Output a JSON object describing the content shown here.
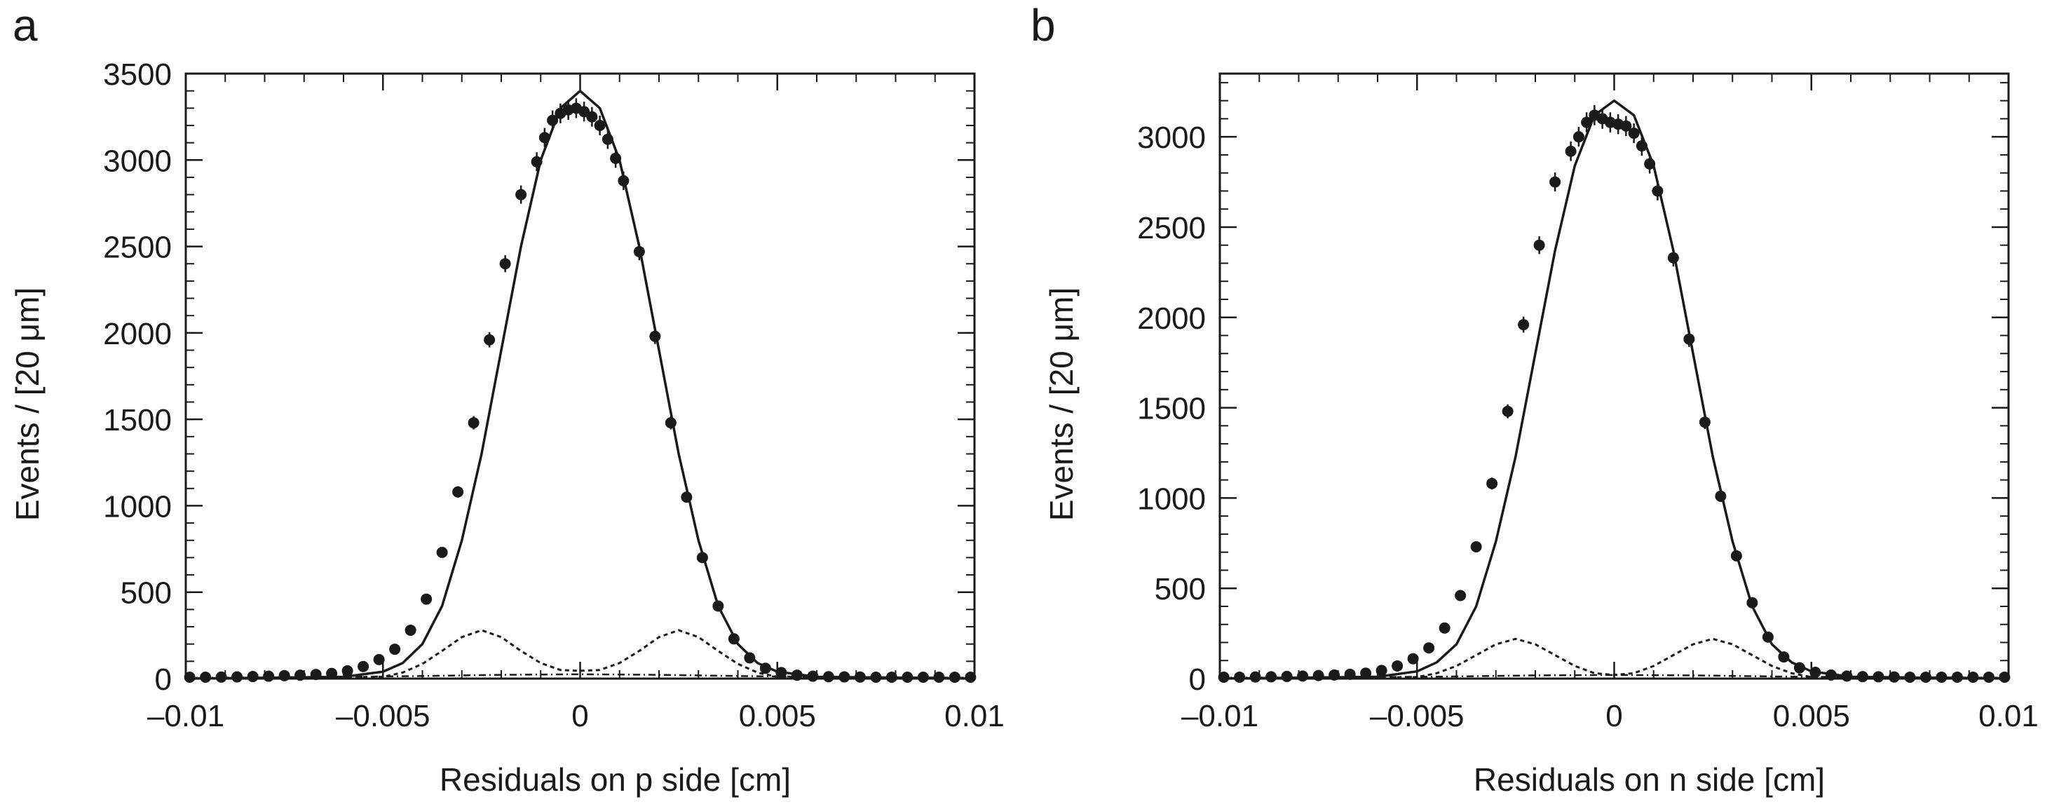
{
  "chart_data": [
    {
      "type": "scatter",
      "panel_label": "a",
      "xlabel": "Residuals on p side [cm]",
      "ylabel": "Events / [20 μm]",
      "xlim": [
        -0.01,
        0.01
      ],
      "ylim": [
        0,
        3500
      ],
      "x_ticks": [
        -0.01,
        -0.005,
        0,
        0.005,
        0.01
      ],
      "x_tick_labels": [
        "–0.01",
        "–0.005",
        "0",
        "0.005",
        "0.01"
      ],
      "y_ticks": [
        0,
        500,
        1000,
        1500,
        2000,
        2500,
        3000,
        3500
      ],
      "y_tick_labels": [
        "0",
        "500",
        "1000",
        "1500",
        "2000",
        "2500",
        "3000",
        "3500"
      ],
      "grid": false,
      "legend": "none",
      "series": [
        {
          "style": "points-with-error-bars",
          "x": [
            -0.0099,
            -0.0095,
            -0.0091,
            -0.0087,
            -0.0083,
            -0.0079,
            -0.0075,
            -0.0071,
            -0.0067,
            -0.0063,
            -0.0059,
            -0.0055,
            -0.0051,
            -0.0047,
            -0.0043,
            -0.0039,
            -0.0035,
            -0.0031,
            -0.0027,
            -0.0023,
            -0.0019,
            -0.0015,
            -0.0011,
            -0.0009,
            -0.0007,
            -0.0005,
            -0.0003,
            -0.0001,
            0.0001,
            0.0003,
            0.0005,
            0.0007,
            0.0009,
            0.0011,
            0.0015,
            0.0019,
            0.0023,
            0.0027,
            0.0031,
            0.0035,
            0.0039,
            0.0043,
            0.0047,
            0.0051,
            0.0055,
            0.0059,
            0.0063,
            0.0067,
            0.0071,
            0.0075,
            0.0079,
            0.0083,
            0.0087,
            0.0091,
            0.0095,
            0.0099
          ],
          "y": [
            8,
            8,
            9,
            10,
            12,
            14,
            17,
            20,
            24,
            30,
            45,
            70,
            110,
            170,
            280,
            460,
            730,
            1080,
            1480,
            1960,
            2400,
            2800,
            2990,
            3130,
            3230,
            3270,
            3290,
            3300,
            3280,
            3250,
            3200,
            3120,
            3010,
            2880,
            2470,
            1980,
            1480,
            1050,
            700,
            420,
            230,
            120,
            60,
            35,
            20,
            14,
            11,
            10,
            9,
            8,
            8,
            8,
            8,
            8,
            8,
            8
          ]
        },
        {
          "style": "solid-line",
          "x": [
            -0.01,
            -0.006,
            -0.005,
            -0.0045,
            -0.004,
            -0.0035,
            -0.003,
            -0.0025,
            -0.002,
            -0.0015,
            -0.001,
            -0.0005,
            0,
            0.0005,
            0.001,
            0.0015,
            0.002,
            0.0025,
            0.003,
            0.0035,
            0.004,
            0.0045,
            0.005,
            0.006,
            0.01
          ],
          "y": [
            0,
            10,
            40,
            90,
            200,
            420,
            800,
            1300,
            1900,
            2500,
            3000,
            3300,
            3400,
            3300,
            3000,
            2500,
            1900,
            1300,
            800,
            420,
            200,
            90,
            40,
            10,
            0
          ]
        },
        {
          "style": "dashed-line",
          "x": [
            -0.01,
            -0.005,
            -0.0045,
            -0.004,
            -0.0035,
            -0.003,
            -0.0025,
            -0.002,
            -0.0015,
            -0.001,
            -0.0005,
            0,
            0.0005,
            0.001,
            0.0015,
            0.002,
            0.0025,
            0.003,
            0.0035,
            0.004,
            0.0045,
            0.005,
            0.01
          ],
          "y": [
            0,
            10,
            35,
            85,
            160,
            240,
            280,
            240,
            160,
            90,
            50,
            45,
            50,
            90,
            160,
            240,
            280,
            240,
            160,
            85,
            35,
            10,
            0
          ]
        },
        {
          "style": "dash-dot-line",
          "x": [
            -0.01,
            -0.006,
            -0.004,
            -0.002,
            0,
            0.002,
            0.004,
            0.006,
            0.01
          ],
          "y": [
            5,
            10,
            15,
            22,
            25,
            22,
            15,
            10,
            5
          ]
        }
      ]
    },
    {
      "type": "scatter",
      "panel_label": "b",
      "xlabel": "Residuals on n side [cm]",
      "ylabel": "Events / [20 μm]",
      "xlim": [
        -0.01,
        0.01
      ],
      "ylim": [
        0,
        3350
      ],
      "x_ticks": [
        -0.01,
        -0.005,
        0,
        0.005,
        0.01
      ],
      "x_tick_labels": [
        "–0.01",
        "–0.005",
        "0",
        "0.005",
        "0.01"
      ],
      "y_ticks": [
        0,
        500,
        1000,
        1500,
        2000,
        2500,
        3000
      ],
      "y_tick_labels": [
        "0",
        "500",
        "1000",
        "1500",
        "2000",
        "2500",
        "3000"
      ],
      "grid": false,
      "legend": "none",
      "series": [
        {
          "style": "points-with-error-bars",
          "x": [
            -0.0099,
            -0.0095,
            -0.0091,
            -0.0087,
            -0.0083,
            -0.0079,
            -0.0075,
            -0.0071,
            -0.0067,
            -0.0063,
            -0.0059,
            -0.0055,
            -0.0051,
            -0.0047,
            -0.0043,
            -0.0039,
            -0.0035,
            -0.0031,
            -0.0027,
            -0.0023,
            -0.0019,
            -0.0015,
            -0.0011,
            -0.0009,
            -0.0007,
            -0.0005,
            -0.0003,
            -0.0001,
            0.0001,
            0.0003,
            0.0005,
            0.0007,
            0.0009,
            0.0011,
            0.0015,
            0.0019,
            0.0023,
            0.0027,
            0.0031,
            0.0035,
            0.0039,
            0.0043,
            0.0047,
            0.0051,
            0.0055,
            0.0059,
            0.0063,
            0.0067,
            0.0071,
            0.0075,
            0.0079,
            0.0083,
            0.0087,
            0.0091,
            0.0095,
            0.0099
          ],
          "y": [
            8,
            8,
            9,
            10,
            12,
            14,
            17,
            20,
            24,
            30,
            45,
            70,
            110,
            170,
            280,
            460,
            730,
            1080,
            1480,
            1960,
            2400,
            2750,
            2920,
            3000,
            3080,
            3120,
            3100,
            3080,
            3070,
            3060,
            3020,
            2950,
            2850,
            2700,
            2330,
            1880,
            1420,
            1010,
            680,
            420,
            230,
            120,
            60,
            35,
            20,
            14,
            11,
            10,
            9,
            8,
            8,
            8,
            8,
            8,
            8,
            8
          ]
        },
        {
          "style": "solid-line",
          "x": [
            -0.01,
            -0.006,
            -0.005,
            -0.0045,
            -0.004,
            -0.0035,
            -0.003,
            -0.0025,
            -0.002,
            -0.0015,
            -0.001,
            -0.0005,
            0,
            0.0005,
            0.001,
            0.0015,
            0.002,
            0.0025,
            0.003,
            0.0035,
            0.004,
            0.0045,
            0.005,
            0.006,
            0.01
          ],
          "y": [
            0,
            10,
            40,
            90,
            190,
            400,
            760,
            1230,
            1800,
            2370,
            2840,
            3120,
            3200,
            3120,
            2840,
            2370,
            1800,
            1230,
            760,
            400,
            190,
            90,
            40,
            10,
            0
          ]
        },
        {
          "style": "dashed-line",
          "x": [
            -0.01,
            -0.005,
            -0.0045,
            -0.004,
            -0.0035,
            -0.003,
            -0.0025,
            -0.002,
            -0.0015,
            -0.001,
            -0.0005,
            0,
            0.0005,
            0.001,
            0.0015,
            0.002,
            0.0025,
            0.003,
            0.0035,
            0.004,
            0.0045,
            0.005,
            0.01
          ],
          "y": [
            0,
            8,
            30,
            70,
            130,
            190,
            220,
            190,
            130,
            70,
            30,
            20,
            30,
            70,
            130,
            190,
            220,
            190,
            130,
            70,
            30,
            8,
            0
          ]
        },
        {
          "style": "dash-dot-line",
          "x": [
            -0.01,
            -0.006,
            -0.004,
            -0.002,
            0,
            0.002,
            0.004,
            0.006,
            0.01
          ],
          "y": [
            5,
            8,
            12,
            18,
            20,
            18,
            12,
            8,
            5
          ]
        }
      ]
    }
  ]
}
